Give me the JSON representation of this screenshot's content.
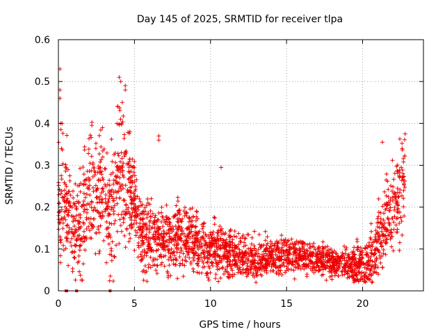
{
  "chart_data": {
    "type": "scatter",
    "title": "Day 145 of 2025, SRMTID for receiver tlpa",
    "xlabel": "GPS time / hours",
    "ylabel": "SRMTID / TECUs",
    "xlim": [
      0,
      24
    ],
    "ylim": [
      0,
      0.6
    ],
    "xticks": [
      0,
      5,
      10,
      15,
      20
    ],
    "yticks": [
      0,
      0.1,
      0.2,
      0.3,
      0.4,
      0.5,
      0.6
    ],
    "xtick_labels": [
      "0",
      "5",
      "10",
      "15",
      "20"
    ],
    "ytick_labels": [
      "0",
      "0.1",
      "0.2",
      "0.3",
      "0.4",
      "0.5",
      "0.6"
    ],
    "grid": true,
    "marker": "+",
    "color": "#ee0000",
    "trend": [
      {
        "x": 0.0,
        "y": 0.2
      },
      {
        "x": 0.3,
        "y": 0.24
      },
      {
        "x": 0.8,
        "y": 0.14
      },
      {
        "x": 1.2,
        "y": 0.13
      },
      {
        "x": 1.8,
        "y": 0.22
      },
      {
        "x": 2.3,
        "y": 0.26
      },
      {
        "x": 3.0,
        "y": 0.22
      },
      {
        "x": 3.5,
        "y": 0.18
      },
      {
        "x": 4.0,
        "y": 0.27
      },
      {
        "x": 4.5,
        "y": 0.27
      },
      {
        "x": 5.0,
        "y": 0.21
      },
      {
        "x": 5.5,
        "y": 0.13
      },
      {
        "x": 6.5,
        "y": 0.12
      },
      {
        "x": 7.5,
        "y": 0.12
      },
      {
        "x": 8.5,
        "y": 0.13
      },
      {
        "x": 9.5,
        "y": 0.1
      },
      {
        "x": 10.5,
        "y": 0.1
      },
      {
        "x": 11.5,
        "y": 0.08
      },
      {
        "x": 13.0,
        "y": 0.075
      },
      {
        "x": 14.0,
        "y": 0.08
      },
      {
        "x": 15.0,
        "y": 0.085
      },
      {
        "x": 16.0,
        "y": 0.085
      },
      {
        "x": 17.0,
        "y": 0.075
      },
      {
        "x": 18.0,
        "y": 0.07
      },
      {
        "x": 19.0,
        "y": 0.06
      },
      {
        "x": 20.0,
        "y": 0.06
      },
      {
        "x": 20.5,
        "y": 0.07
      },
      {
        "x": 21.0,
        "y": 0.11
      },
      {
        "x": 21.5,
        "y": 0.17
      },
      {
        "x": 22.0,
        "y": 0.2
      },
      {
        "x": 22.5,
        "y": 0.24
      },
      {
        "x": 22.8,
        "y": 0.26
      }
    ],
    "spread": [
      {
        "x": 0.0,
        "s": 0.1
      },
      {
        "x": 2.0,
        "s": 0.08
      },
      {
        "x": 4.2,
        "s": 0.1
      },
      {
        "x": 5.0,
        "s": 0.06
      },
      {
        "x": 7.0,
        "s": 0.05
      },
      {
        "x": 9.0,
        "s": 0.045
      },
      {
        "x": 11.0,
        "s": 0.035
      },
      {
        "x": 13.0,
        "s": 0.03
      },
      {
        "x": 16.0,
        "s": 0.025
      },
      {
        "x": 19.0,
        "s": 0.02
      },
      {
        "x": 21.0,
        "s": 0.05
      },
      {
        "x": 22.8,
        "s": 0.07
      }
    ],
    "sample_count": 2600,
    "notable_points": [
      {
        "x": 0.1,
        "y": 0.53
      },
      {
        "x": 0.1,
        "y": 0.48
      },
      {
        "x": 0.1,
        "y": 0.46
      },
      {
        "x": 0.15,
        "y": 0.4
      },
      {
        "x": 0.2,
        "y": 0.34
      },
      {
        "x": 4.0,
        "y": 0.51
      },
      {
        "x": 4.1,
        "y": 0.5
      },
      {
        "x": 4.4,
        "y": 0.49
      },
      {
        "x": 4.4,
        "y": 0.48
      },
      {
        "x": 3.9,
        "y": 0.44
      },
      {
        "x": 4.2,
        "y": 0.45
      },
      {
        "x": 2.9,
        "y": 0.39
      },
      {
        "x": 6.6,
        "y": 0.37
      },
      {
        "x": 6.6,
        "y": 0.36
      },
      {
        "x": 10.7,
        "y": 0.295
      },
      {
        "x": 21.3,
        "y": 0.355
      },
      {
        "x": 22.8,
        "y": 0.375
      },
      {
        "x": 22.6,
        "y": 0.34
      }
    ],
    "zero_markers": [
      {
        "x": 0.5,
        "y": 0
      },
      {
        "x": 0.55,
        "y": 0
      },
      {
        "x": 1.2,
        "y": 0
      },
      {
        "x": 3.4,
        "y": 0
      }
    ]
  }
}
